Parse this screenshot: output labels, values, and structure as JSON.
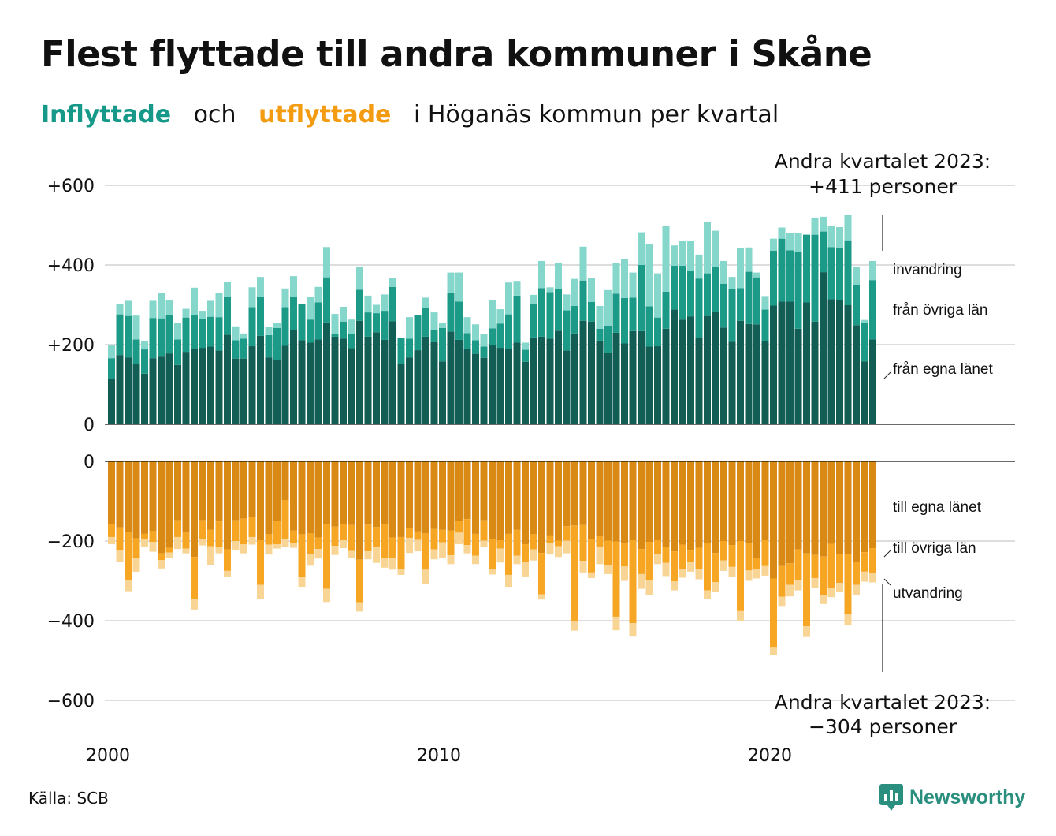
{
  "title": "Flest flyttade till andra kommuner i Skåne",
  "subtitle": {
    "inflyttade": "Inflyttade",
    "och": "och",
    "utflyttade": "utflyttade",
    "rest": "i Höganäs  kommun  per  kvartal"
  },
  "source": "Källa: SCB",
  "logo": "Newsworthy",
  "colors": {
    "in_egna": "#125e55",
    "in_ovriga": "#1b9a88",
    "in_invandring": "#85d6cb",
    "out_egna": "#d98a14",
    "out_ovriga": "#f6a623",
    "out_utvandring": "#f9d595"
  },
  "chart_data": [
    {
      "type": "bar",
      "stacked": true,
      "title": "Inflyttade",
      "x_start": "2000 Q1",
      "x_ticks": [
        "2000",
        "2010",
        "2020"
      ],
      "y_ticks": [
        "+600",
        "+400",
        "+200",
        "0"
      ],
      "ylim": [
        0,
        600
      ],
      "series": [
        {
          "name": "från egna länet",
          "values": [
            113,
            174,
            168,
            152,
            127,
            166,
            170,
            178,
            149,
            182,
            190,
            192,
            195,
            185,
            225,
            165,
            165,
            196,
            222,
            168,
            162,
            197,
            237,
            211,
            205,
            213,
            256,
            220,
            215,
            191,
            260,
            220,
            231,
            212,
            259,
            151,
            168,
            186,
            220,
            206,
            158,
            233,
            212,
            189,
            177,
            167,
            198,
            192,
            190,
            205,
            157,
            218,
            220,
            215,
            235,
            185,
            228,
            260,
            258,
            210,
            180,
            230,
            203,
            234,
            234,
            195,
            196,
            240,
            288,
            263,
            271,
            216,
            272,
            282,
            243,
            207,
            260,
            252,
            251,
            208,
            298,
            308,
            308,
            240,
            306,
            258,
            382,
            314,
            311,
            299,
            249,
            158,
            213
          ]
        },
        {
          "name": "från övriga län",
          "values": [
            53,
            102,
            104,
            61,
            61,
            101,
            96,
            96,
            64,
            86,
            84,
            73,
            75,
            84,
            95,
            46,
            50,
            98,
            97,
            56,
            80,
            97,
            83,
            90,
            58,
            93,
            113,
            6,
            43,
            36,
            78,
            61,
            48,
            73,
            86,
            65,
            47,
            89,
            73,
            30,
            84,
            96,
            96,
            40,
            34,
            28,
            43,
            61,
            86,
            118,
            30,
            84,
            122,
            117,
            104,
            101,
            69,
            101,
            49,
            30,
            68,
            98,
            114,
            84,
            166,
            101,
            72,
            93,
            110,
            135,
            114,
            150,
            107,
            113,
            110,
            132,
            82,
            131,
            118,
            80,
            138,
            158,
            129,
            193,
            170,
            218,
            102,
            131,
            133,
            163,
            102,
            97,
            149
          ]
        },
        {
          "name": "invandring",
          "values": [
            32,
            27,
            38,
            60,
            20,
            43,
            64,
            37,
            42,
            22,
            69,
            20,
            40,
            60,
            38,
            35,
            13,
            50,
            51,
            20,
            12,
            47,
            52,
            0,
            57,
            39,
            76,
            51,
            37,
            36,
            57,
            42,
            21,
            41,
            23,
            0,
            54,
            0,
            25,
            45,
            12,
            52,
            73,
            40,
            40,
            31,
            70,
            36,
            80,
            37,
            18,
            23,
            68,
            12,
            67,
            40,
            68,
            85,
            61,
            57,
            89,
            76,
            98,
            63,
            82,
            156,
            111,
            165,
            51,
            62,
            76,
            60,
            130,
            91,
            57,
            31,
            100,
            61,
            12,
            34,
            30,
            28,
            43,
            48,
            0,
            43,
            37,
            53,
            51,
            63,
            43,
            7,
            48
          ]
        }
      ]
    },
    {
      "type": "bar",
      "stacked": true,
      "title": "Utflyttade",
      "x_start": "2000 Q1",
      "x_ticks": [
        "2000",
        "2010",
        "2020"
      ],
      "y_ticks": [
        "0",
        "−200",
        "−400",
        "−600"
      ],
      "ylim": [
        -600,
        0
      ],
      "series": [
        {
          "name": "till egna länet",
          "values": [
            -157,
            -166,
            -178,
            -193,
            -182,
            -175,
            -231,
            -217,
            -148,
            -179,
            -240,
            -148,
            -172,
            -151,
            -221,
            -148,
            -144,
            -140,
            -198,
            -183,
            -149,
            -97,
            -174,
            -183,
            -181,
            -191,
            -157,
            -164,
            -157,
            -160,
            -247,
            -159,
            -165,
            -158,
            -191,
            -190,
            -167,
            -176,
            -181,
            -170,
            -172,
            -174,
            -150,
            -145,
            -182,
            -148,
            -196,
            -198,
            -182,
            -172,
            -208,
            -183,
            -230,
            -186,
            -199,
            -163,
            -161,
            -160,
            -196,
            -187,
            -199,
            -201,
            -206,
            -198,
            -220,
            -202,
            -198,
            -215,
            -226,
            -209,
            -224,
            -217,
            -204,
            -230,
            -200,
            -210,
            -200,
            -205,
            -243,
            -198,
            -294,
            -263,
            -256,
            -221,
            -231,
            -235,
            -239,
            -207,
            -233,
            -233,
            -252,
            -228,
            -218
          ]
        },
        {
          "name": "till övriga län",
          "values": [
            -33,
            -56,
            -120,
            -50,
            -13,
            -27,
            -17,
            -12,
            -42,
            -40,
            -106,
            -48,
            -41,
            -63,
            -54,
            -52,
            -64,
            -50,
            -112,
            -26,
            -59,
            -97,
            -32,
            -108,
            -51,
            -29,
            -163,
            -48,
            -41,
            -65,
            -107,
            -67,
            -51,
            -85,
            -51,
            -81,
            -25,
            -21,
            -91,
            -51,
            -31,
            -62,
            -29,
            -65,
            -55,
            -51,
            -74,
            -21,
            -103,
            -65,
            -44,
            -38,
            -104,
            -20,
            -14,
            -36,
            -239,
            -90,
            -83,
            -27,
            -61,
            -189,
            -58,
            -208,
            -63,
            -97,
            -35,
            -40,
            -75,
            -62,
            -29,
            -53,
            -120,
            -73,
            -49,
            -55,
            -176,
            -69,
            -27,
            -65,
            -172,
            -77,
            -54,
            -77,
            -183,
            -58,
            -98,
            -112,
            -72,
            -150,
            -58,
            -49,
            -62
          ]
        },
        {
          "name": "utvandring",
          "values": [
            -18,
            -31,
            -28,
            -34,
            -19,
            -25,
            -21,
            -14,
            -30,
            -12,
            -26,
            -15,
            -47,
            -17,
            -16,
            -23,
            -23,
            -19,
            -35,
            -25,
            -11,
            -20,
            -11,
            -24,
            -30,
            -24,
            -33,
            -23,
            -20,
            -17,
            -23,
            -20,
            -39,
            -24,
            -30,
            -14,
            -38,
            -29,
            -36,
            -25,
            -39,
            -22,
            -29,
            -21,
            -21,
            -17,
            -14,
            -35,
            -30,
            -21,
            -37,
            -28,
            -13,
            -28,
            -27,
            -32,
            -25,
            -29,
            -14,
            -44,
            -23,
            -34,
            -36,
            -34,
            -37,
            -36,
            -25,
            -33,
            -23,
            -21,
            -24,
            -26,
            -22,
            -25,
            -26,
            -26,
            -24,
            -26,
            -24,
            -24,
            -20,
            -25,
            -29,
            -26,
            -27,
            -25,
            -21,
            -22,
            -23,
            -29,
            -25,
            -25,
            -24
          ]
        }
      ]
    }
  ],
  "annotations": {
    "top_label": "Andra kvartalet 2023:",
    "top_value": "+411 personer",
    "bottom_label": "Andra kvartalet 2023:",
    "bottom_value": "−304 personer",
    "in_labels": [
      "invandring",
      "från övriga län",
      "från egna länet"
    ],
    "out_labels": [
      "till egna länet",
      "till övriga län",
      "utvandring"
    ]
  }
}
